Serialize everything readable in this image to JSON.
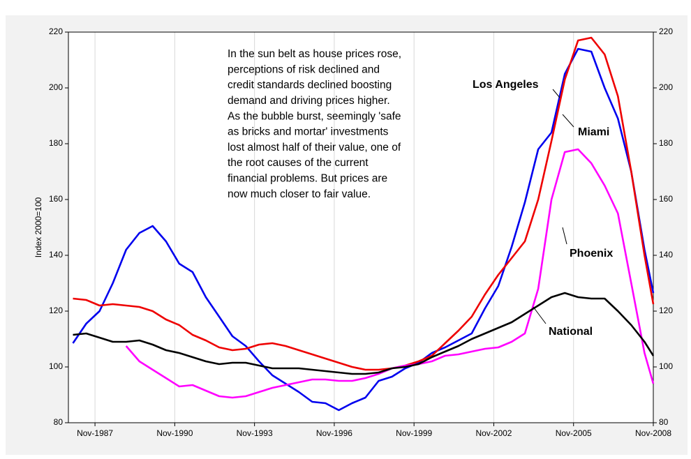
{
  "chart_data": {
    "type": "line",
    "y_label": "Index 2000=100",
    "annotation": [
      "In the sun belt as house prices rose,",
      "perceptions of risk declined and",
      "credit standards declined boosting",
      "demand and driving prices higher.",
      "As the bubble burst, seemingly 'safe",
      "as bricks and mortar' investments",
      "lost almost half of their value, one of",
      "the root causes of the current",
      "financial problems. But prices are",
      "now much closer to fair value."
    ],
    "x": [
      1987.0,
      1987.5,
      1988.0,
      1988.5,
      1989.0,
      1989.5,
      1990.0,
      1990.5,
      1991.0,
      1991.5,
      1992.0,
      1992.5,
      1993.0,
      1993.5,
      1994.0,
      1994.5,
      1995.0,
      1995.5,
      1996.0,
      1996.5,
      1997.0,
      1997.5,
      1998.0,
      1998.5,
      1999.0,
      1999.5,
      2000.0,
      2000.5,
      2001.0,
      2001.5,
      2002.0,
      2002.5,
      2003.0,
      2003.5,
      2004.0,
      2004.5,
      2005.0,
      2005.5,
      2006.0,
      2006.5,
      2007.0,
      2007.5,
      2008.0,
      2008.5,
      2008.83
    ],
    "series": [
      {
        "name": "Los Angeles",
        "color": "#0000ee",
        "values": [
          108.5,
          115.5,
          120,
          130,
          142,
          148,
          150.5,
          145,
          137,
          134,
          125,
          118,
          111,
          107.5,
          102,
          97,
          94,
          91,
          87.5,
          87,
          84.5,
          87,
          89,
          95,
          96.5,
          99.5,
          101.5,
          105,
          107,
          109.5,
          112,
          121,
          129,
          143,
          159,
          178,
          184,
          205,
          214,
          213,
          200,
          189,
          170,
          142,
          126.5
        ]
      },
      {
        "name": "Miami",
        "color": "#ee0000",
        "values": [
          124.5,
          124,
          122,
          122.5,
          122,
          121.5,
          120,
          117,
          115,
          111.5,
          109.5,
          107,
          106,
          106.5,
          108,
          108.5,
          107.5,
          106,
          104.5,
          103,
          101.5,
          100,
          99,
          99,
          99.5,
          100.5,
          102,
          104,
          108.5,
          113,
          118,
          126,
          133,
          139,
          145,
          160,
          181,
          203,
          217,
          218,
          212,
          197,
          170,
          140,
          122.5
        ]
      },
      {
        "name": "Phoenix",
        "color": "#ff00ff",
        "values": [
          null,
          null,
          null,
          null,
          107.5,
          102,
          99,
          96,
          93,
          93.5,
          91.5,
          89.5,
          89,
          89.5,
          91,
          92.5,
          93.5,
          94.5,
          95.5,
          95.5,
          95,
          95,
          96,
          97.5,
          99.5,
          100.5,
          101,
          102,
          104,
          104.5,
          105.5,
          106.5,
          107,
          109,
          112,
          128,
          160,
          177,
          178,
          173,
          165,
          155,
          130,
          105,
          94
        ]
      },
      {
        "name": "National",
        "color": "#000000",
        "values": [
          111.5,
          112,
          110.5,
          109,
          109,
          109.5,
          108,
          106,
          105,
          103.5,
          102,
          101,
          101.5,
          101.5,
          100.5,
          99.5,
          99.5,
          99.5,
          99,
          98.5,
          98,
          97.5,
          97.5,
          98,
          99.5,
          100,
          101,
          103.5,
          105.5,
          107.5,
          110,
          112,
          114,
          116,
          119,
          122,
          125,
          126.5,
          125,
          124.5,
          124.5,
          120,
          115,
          109,
          104
        ]
      }
    ],
    "xlim": [
      1986.83,
      2008.83
    ],
    "xticks": [
      {
        "value": 1987.83,
        "label": "Nov-1987"
      },
      {
        "value": 1990.83,
        "label": "Nov-1990"
      },
      {
        "value": 1993.83,
        "label": "Nov-1993"
      },
      {
        "value": 1996.83,
        "label": "Nov-1996"
      },
      {
        "value": 1999.83,
        "label": "Nov-1999"
      },
      {
        "value": 2002.83,
        "label": "Nov-2002"
      },
      {
        "value": 2005.83,
        "label": "Nov-2005"
      },
      {
        "value": 2008.83,
        "label": "Nov-2008"
      }
    ],
    "ylim": [
      80,
      220
    ],
    "yticks": [
      80,
      100,
      120,
      140,
      160,
      180,
      200,
      220
    ],
    "xgrid": true
  }
}
